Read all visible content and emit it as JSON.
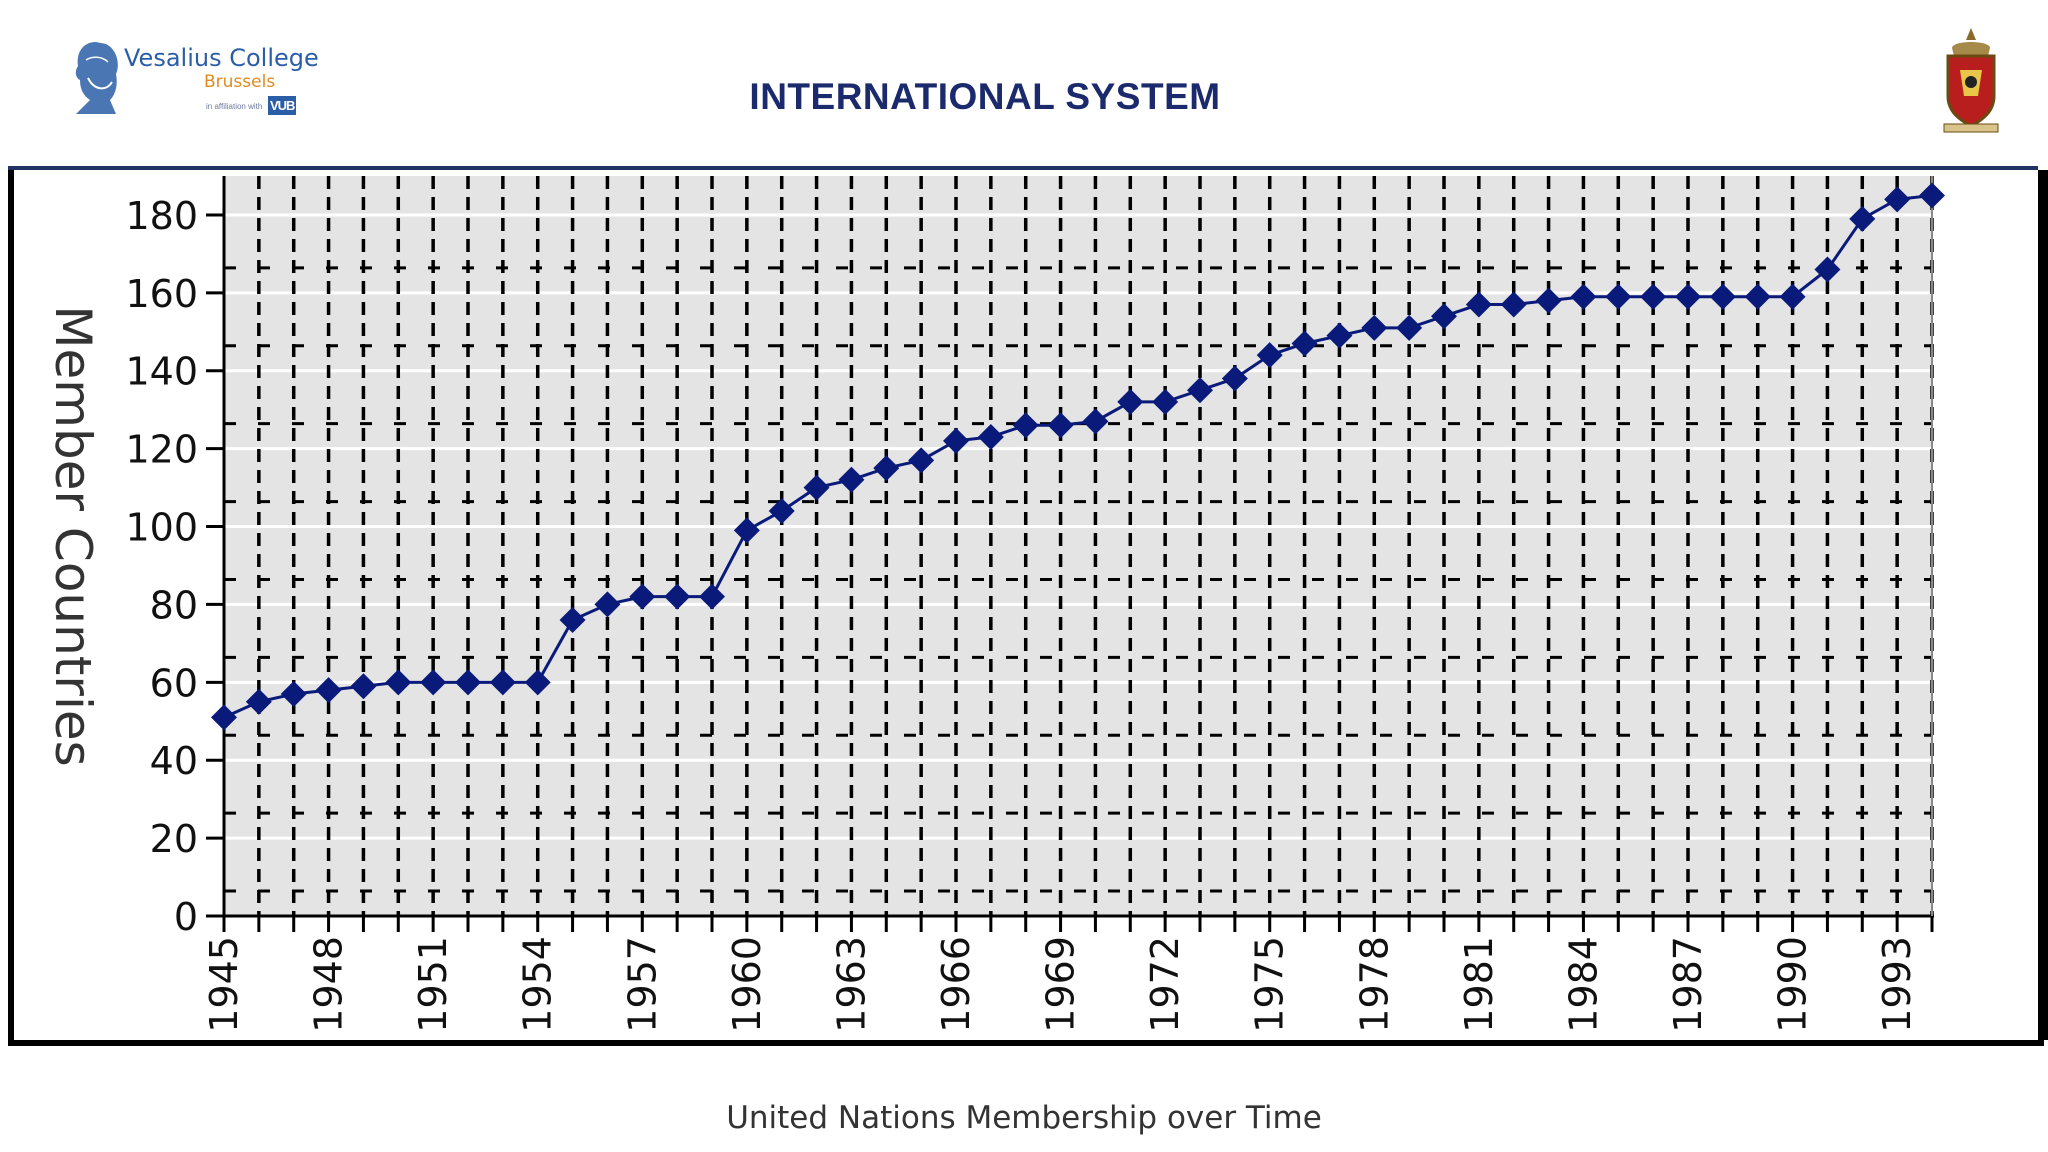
{
  "header": {
    "brand_name": "Vesalius College",
    "brand_sub": "Brussels",
    "brand_affiliation": "in affiliation with",
    "brand_vub": "VUB",
    "title": "INTERNATIONAL SYSTEM"
  },
  "caption": "United Nations Membership over Time",
  "colors": {
    "title": "#1a2a6c",
    "series": "#0a1a7a",
    "plot_bg": "#e4e4e4",
    "rule": "#1f3364"
  },
  "chart_data": {
    "type": "line",
    "title": "",
    "xlabel": "",
    "ylabel": "Member Countries",
    "ylim": [
      0,
      190
    ],
    "yticks": [
      0,
      20,
      40,
      60,
      80,
      100,
      120,
      140,
      160,
      180
    ],
    "xticks": [
      1945,
      1948,
      1951,
      1954,
      1957,
      1960,
      1963,
      1966,
      1969,
      1972,
      1975,
      1978,
      1981,
      1984,
      1987,
      1990,
      1993
    ],
    "x": [
      1945,
      1946,
      1947,
      1948,
      1949,
      1950,
      1951,
      1952,
      1953,
      1954,
      1955,
      1956,
      1957,
      1958,
      1959,
      1960,
      1961,
      1962,
      1963,
      1964,
      1965,
      1966,
      1967,
      1968,
      1969,
      1970,
      1971,
      1972,
      1973,
      1974,
      1975,
      1976,
      1977,
      1978,
      1979,
      1980,
      1981,
      1982,
      1983,
      1984,
      1985,
      1986,
      1987,
      1988,
      1989,
      1990,
      1991,
      1992,
      1993,
      1994
    ],
    "series": [
      {
        "name": "",
        "values": [
          51,
          55,
          57,
          58,
          59,
          60,
          60,
          60,
          60,
          60,
          76,
          80,
          82,
          82,
          82,
          99,
          104,
          110,
          112,
          115,
          117,
          122,
          123,
          126,
          126,
          127,
          132,
          132,
          135,
          138,
          144,
          147,
          149,
          151,
          151,
          154,
          157,
          157,
          158,
          159,
          159,
          159,
          159,
          159,
          159,
          159,
          166,
          179,
          184,
          185
        ]
      }
    ],
    "grid": true,
    "legend": "none"
  }
}
